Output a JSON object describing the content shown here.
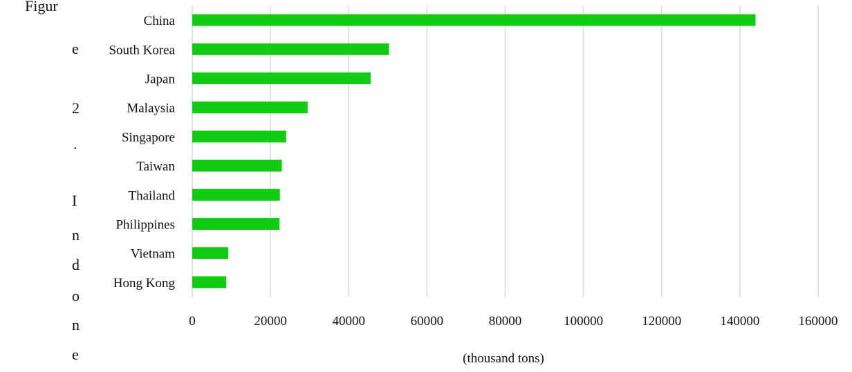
{
  "caption": {
    "lines": [
      "Figur",
      "e",
      "2",
      ".",
      "I",
      "n",
      "d",
      "o",
      "n",
      "e"
    ]
  },
  "chart_data": {
    "type": "bar",
    "orientation": "horizontal",
    "categories": [
      "China",
      "South Korea",
      "Japan",
      "Malaysia",
      "Singapore",
      "Taiwan",
      "Thailand",
      "Philippines",
      "Vietnam",
      "Hong Kong"
    ],
    "values": [
      144000,
      50300,
      45600,
      29500,
      24000,
      22900,
      22400,
      22300,
      9200,
      8700
    ],
    "xlabel": "(thousand tons)",
    "ylabel": "",
    "xlim": [
      0,
      160000
    ],
    "xticks": [
      0,
      20000,
      40000,
      60000,
      80000,
      100000,
      120000,
      140000,
      160000
    ],
    "xtick_labels": [
      "0",
      "20000",
      "40000",
      "60000",
      "80000",
      "100000",
      "120000",
      "140000",
      "160000"
    ],
    "grid": "vertical",
    "legend": "none",
    "bar_color": "#11cc11",
    "grid_color": "#d9d9d9"
  }
}
